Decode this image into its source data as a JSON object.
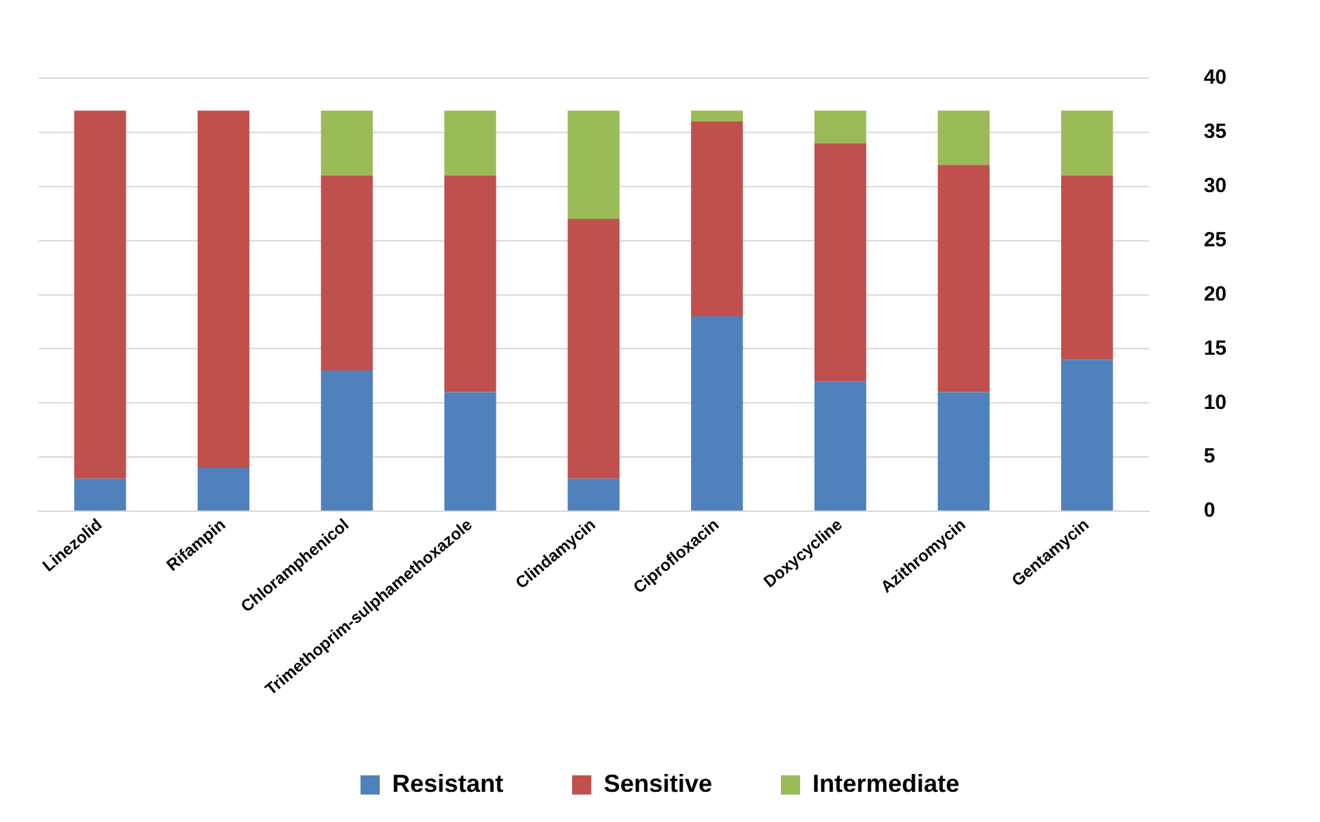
{
  "chart_data": {
    "type": "bar",
    "stacked": true,
    "categories": [
      "Linezolid",
      "Rifampin",
      "Chloramphenicol",
      "Trimethoprim-sulphamethoxazole",
      "Clindamycin",
      "Ciprofloxacin",
      "Doxycycline",
      "Azithromycin",
      "Gentamycin"
    ],
    "series": [
      {
        "name": "Resistant",
        "color": "#4f81bd",
        "values": [
          3,
          4,
          13,
          11,
          3,
          18,
          12,
          11,
          14
        ]
      },
      {
        "name": "Sensitive",
        "color": "#c0504d",
        "values": [
          34,
          33,
          18,
          20,
          24,
          18,
          22,
          21,
          17
        ]
      },
      {
        "name": "Intermediate",
        "color": "#9bbb59",
        "values": [
          0,
          0,
          6,
          6,
          10,
          1,
          3,
          5,
          6
        ]
      }
    ],
    "ylim": [
      0,
      40
    ],
    "yticks": [
      0,
      5,
      10,
      15,
      20,
      25,
      30,
      35,
      40
    ],
    "grid": "y",
    "legend": "bottom"
  }
}
